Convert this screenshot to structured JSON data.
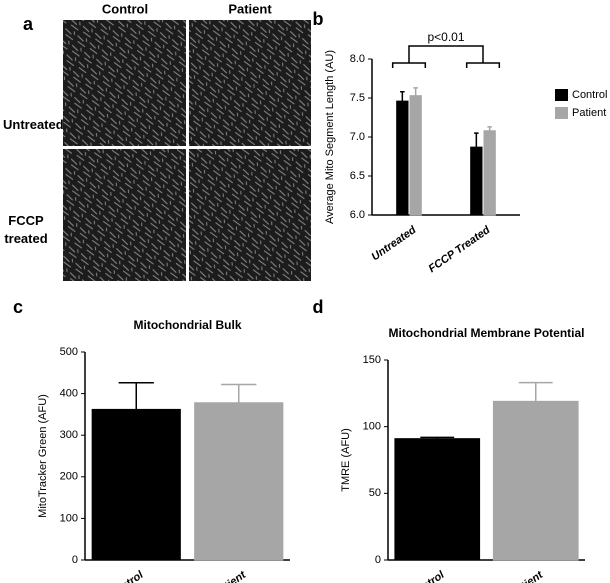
{
  "panel_a": {
    "label": "a",
    "columns": [
      "Control",
      "Patient"
    ],
    "rows": [
      "Untreated",
      "FCCP treated"
    ]
  },
  "chart_data": [
    {
      "type": "bar",
      "panel_label": "b",
      "y_label": "Average Mito Segment Length (AU)",
      "annotation": "p<0.01",
      "categories": [
        "Untreated",
        "FCCP Treated"
      ],
      "series": [
        {
          "name": "Control",
          "color": "#000000",
          "values": [
            7.46,
            6.87
          ],
          "errors": [
            0.12,
            0.18
          ]
        },
        {
          "name": "Patient",
          "color": "#a6a6a6",
          "values": [
            7.53,
            7.08
          ],
          "errors": [
            0.1,
            0.05
          ]
        }
      ],
      "ylim": [
        6,
        8
      ],
      "yticks": [
        {
          "value": 6,
          "label": "6.0"
        },
        {
          "value": 6.5,
          "label": "6.5"
        },
        {
          "value": 7,
          "label": "7.0"
        },
        {
          "value": 7.5,
          "label": "7.5"
        },
        {
          "value": 8,
          "label": "8.0"
        }
      ]
    },
    {
      "type": "bar",
      "panel_label": "c",
      "title": "Mitochondrial Bulk",
      "y_label": "MitoTracker Green (AFU)",
      "categories": [
        "Control",
        "Patient"
      ],
      "series": [
        {
          "colors": [
            "#000000",
            "#a6a6a6"
          ],
          "values": [
            362,
            378
          ],
          "errors": [
            64,
            44
          ]
        }
      ],
      "ylim": [
        0,
        500
      ],
      "yticks": [
        0,
        100,
        200,
        300,
        400,
        500
      ]
    },
    {
      "type": "bar",
      "panel_label": "d",
      "title": "Mitochondrial Membrane Potential",
      "y_label": "TMRE (AFU)",
      "categories": [
        "Control",
        "Patient"
      ],
      "series": [
        {
          "colors": [
            "#000000",
            "#a6a6a6"
          ],
          "values": [
            91,
            119
          ],
          "errors": [
            1,
            14
          ]
        }
      ],
      "ylim": [
        0,
        150
      ],
      "yticks": [
        0,
        50,
        100,
        150
      ]
    }
  ]
}
